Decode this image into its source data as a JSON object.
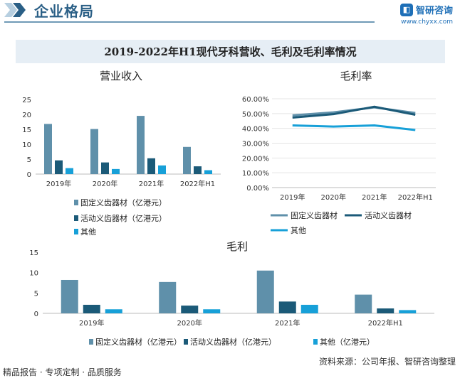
{
  "header": {
    "section_title": "企业格局",
    "brand_name": "智研咨询",
    "brand_url": "www.chyxx.com"
  },
  "title": "2019-2022年H1现代牙科营收、毛利及毛利率情况",
  "colors": {
    "fixed": "#5f90aa",
    "removable": "#1b5a78",
    "other": "#17a0d8"
  },
  "chart_data": [
    {
      "type": "bar",
      "title": "营业收入",
      "categories": [
        "2019年",
        "2020年",
        "2021年",
        "2022年H1"
      ],
      "ylim": [
        0,
        25
      ],
      "yticks": [
        "0",
        "5",
        "10",
        "15",
        "20",
        "25"
      ],
      "series": [
        {
          "name": "固定义齿器材（亿港元）",
          "values": [
            16.8,
            15.1,
            19.5,
            9.1
          ]
        },
        {
          "name": "活动义齿器材（亿港元）",
          "values": [
            4.6,
            3.9,
            5.3,
            2.6
          ]
        },
        {
          "name": "其他",
          "values": [
            2.0,
            1.7,
            2.9,
            1.3
          ]
        }
      ]
    },
    {
      "type": "line",
      "title": "毛利率",
      "categories": [
        "2019年",
        "2020年",
        "2021年",
        "2022年H1"
      ],
      "ylim": [
        0,
        60
      ],
      "yticks": [
        "0.00%",
        "10.00%",
        "20.00%",
        "30.00%",
        "40.00%",
        "50.00%",
        "60.00%"
      ],
      "series": [
        {
          "name": "固定义齿器材",
          "values": [
            48.8,
            50.8,
            54.2,
            50.4
          ]
        },
        {
          "name": "活动义齿器材",
          "values": [
            47.3,
            49.6,
            54.6,
            49.2
          ]
        },
        {
          "name": "其他",
          "values": [
            42.0,
            41.2,
            42.0,
            38.9
          ]
        }
      ]
    },
    {
      "type": "bar",
      "title": "毛利",
      "categories": [
        "2019年",
        "2020年",
        "2021年",
        "2022年H1"
      ],
      "ylim": [
        0,
        15
      ],
      "yticks": [
        "0",
        "5",
        "10",
        "15"
      ],
      "series": [
        {
          "name": "固定义齿器材（亿港元）",
          "values": [
            8.2,
            7.7,
            10.5,
            4.6
          ]
        },
        {
          "name": "活动义齿器材（亿港元）",
          "values": [
            2.1,
            1.9,
            2.9,
            1.2
          ]
        },
        {
          "name": "其他（亿港元）",
          "values": [
            1.0,
            1.0,
            2.1,
            0.8
          ]
        }
      ]
    }
  ],
  "footer": {
    "left": "精品报告 · 专项定制 · 品质服务",
    "source": "资料来源：公司年报、智研咨询整理"
  }
}
